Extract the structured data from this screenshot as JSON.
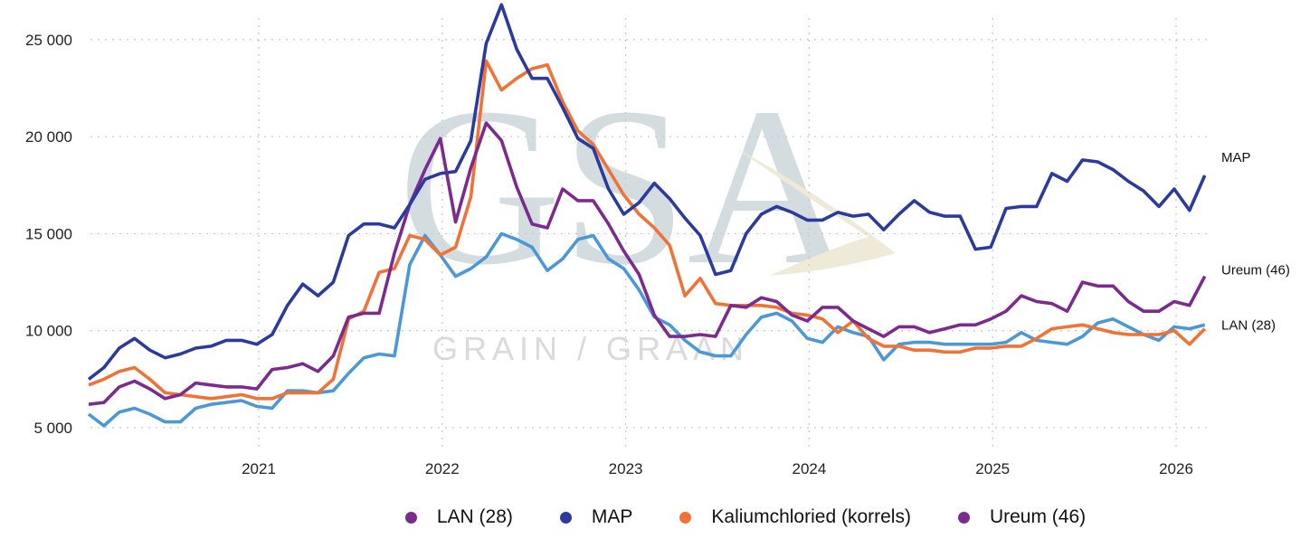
{
  "chart_data": {
    "type": "line",
    "title": "",
    "xlabel": "",
    "ylabel": "",
    "x_start": "2020-02",
    "x_frequency": "monthly",
    "x_ticks": [
      "2021",
      "2022",
      "2023",
      "2024",
      "2025",
      "2026"
    ],
    "y_ticks": [
      "5 000",
      "10 000",
      "15 000",
      "20 000",
      "25 000"
    ],
    "y_tick_values": [
      5000,
      10000,
      15000,
      20000,
      25000
    ],
    "ylim": [
      4000,
      27500
    ],
    "grid": true,
    "legend_position": "bottom",
    "watermark": {
      "main": "GSA",
      "sub": "GRAIN / GRAAN"
    },
    "series": [
      {
        "name": "LAN (28)",
        "legend_color": "#7b2a8e",
        "line_color": "#4a98d8",
        "end_label": "LAN (28)",
        "values": [
          5700,
          5100,
          5800,
          6000,
          5700,
          5300,
          5300,
          6000,
          6200,
          6300,
          6400,
          6100,
          6000,
          6900,
          6900,
          6800,
          6900,
          7800,
          8600,
          8800,
          8700,
          13400,
          14900,
          13900,
          12800,
          13200,
          13800,
          15000,
          14700,
          14300,
          13100,
          13700,
          14700,
          14900,
          13700,
          13200,
          12100,
          10700,
          10300,
          9500,
          8900,
          8700,
          8700,
          9800,
          10700,
          10900,
          10500,
          9600,
          9400,
          10200,
          9900,
          9700,
          8500,
          9300,
          9400,
          9400,
          9300,
          9300,
          9300,
          9300,
          9400,
          9900,
          9500,
          9400,
          9300,
          9700,
          10400,
          10600,
          10200,
          9800,
          9500,
          10200,
          10100,
          10300
        ]
      },
      {
        "name": "MAP",
        "legend_color": "#2b3a9e",
        "line_color": "#2b3a9e",
        "end_label": "MAP",
        "values": [
          7500,
          8100,
          9100,
          9600,
          9000,
          8600,
          8800,
          9100,
          9200,
          9500,
          9500,
          9300,
          9800,
          11300,
          12400,
          11800,
          12500,
          14900,
          15500,
          15500,
          15300,
          16500,
          17800,
          18100,
          18200,
          19800,
          24800,
          26800,
          24500,
          23000,
          23000,
          21500,
          19900,
          19400,
          17300,
          16000,
          16600,
          17600,
          16800,
          15800,
          14900,
          12900,
          13100,
          15000,
          16000,
          16400,
          16100,
          15700,
          15700,
          16100,
          15900,
          16000,
          15200,
          16000,
          16700,
          16100,
          15900,
          15900,
          14200,
          14300,
          16300,
          16400,
          16400,
          18100,
          17700,
          18800,
          18700,
          18300,
          17700,
          17200,
          16400,
          17300,
          16200,
          18000
        ]
      },
      {
        "name": "Kaliumchloried (korrels)",
        "legend_color": "#f07234",
        "line_color": "#f07234",
        "end_label": "",
        "values": [
          7200,
          7500,
          7900,
          8100,
          7500,
          6800,
          6700,
          6600,
          6500,
          6600,
          6700,
          6500,
          6500,
          6800,
          6800,
          6800,
          7500,
          10600,
          11000,
          13000,
          13200,
          14900,
          14700,
          13900,
          14300,
          16900,
          23900,
          22400,
          23000,
          23500,
          23700,
          21800,
          20300,
          19600,
          18300,
          17000,
          16000,
          15300,
          14400,
          11800,
          12700,
          11400,
          11300,
          11300,
          11300,
          11200,
          10900,
          10800,
          10600,
          9900,
          10500,
          9600,
          9200,
          9200,
          9000,
          9000,
          8900,
          8900,
          9100,
          9100,
          9200,
          9200,
          9600,
          10100,
          10200,
          10300,
          10100,
          9900,
          9800,
          9800,
          9800,
          10000,
          9300,
          10100
        ]
      },
      {
        "name": "Ureum (46)",
        "legend_color": "#7b2a8e",
        "line_color": "#7b2a8e",
        "end_label": "Ureum (46)",
        "values": [
          6200,
          6300,
          7100,
          7400,
          7000,
          6500,
          6700,
          7300,
          7200,
          7100,
          7100,
          7000,
          8000,
          8100,
          8300,
          7900,
          8700,
          10700,
          10900,
          10900,
          14000,
          16500,
          18300,
          19900,
          15600,
          18400,
          20700,
          19800,
          17400,
          15500,
          15300,
          17300,
          16700,
          16700,
          15500,
          14100,
          12900,
          10800,
          9700,
          9700,
          9800,
          9700,
          11300,
          11200,
          11700,
          11500,
          10800,
          10500,
          11200,
          11200,
          10500,
          10100,
          9700,
          10200,
          10200,
          9900,
          10100,
          10300,
          10300,
          10600,
          11000,
          11800,
          11500,
          11400,
          11000,
          12500,
          12300,
          12300,
          11500,
          11000,
          11000,
          11500,
          11300,
          12800
        ]
      }
    ]
  }
}
